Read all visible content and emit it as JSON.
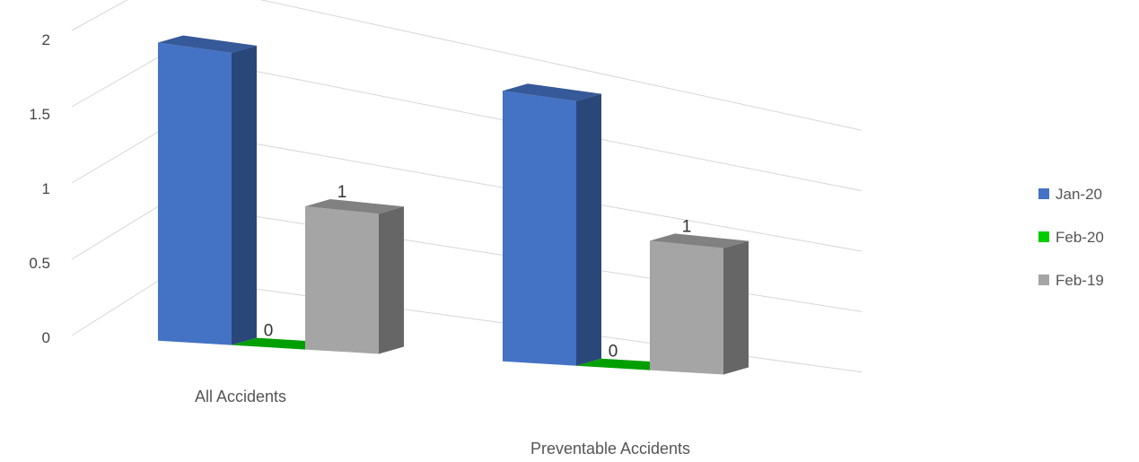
{
  "chart_data": {
    "type": "bar",
    "style": "3d-clustered-column",
    "categories": [
      "All Accidents",
      "Preventable Accidents"
    ],
    "series": [
      {
        "name": "Jan-20",
        "values": [
          2,
          2
        ],
        "color": "#4472C4",
        "data_labels": false
      },
      {
        "name": "Feb-20",
        "values": [
          0,
          0
        ],
        "color": "#00CC00",
        "data_labels": true
      },
      {
        "name": "Feb-19",
        "values": [
          1,
          1
        ],
        "color": "#A5A5A5",
        "data_labels": true
      }
    ],
    "y_ticks": [
      "0",
      "0.5",
      "1",
      "1.5",
      "2"
    ],
    "ylim": [
      0,
      2
    ],
    "grid": true,
    "legend_position": "right"
  }
}
